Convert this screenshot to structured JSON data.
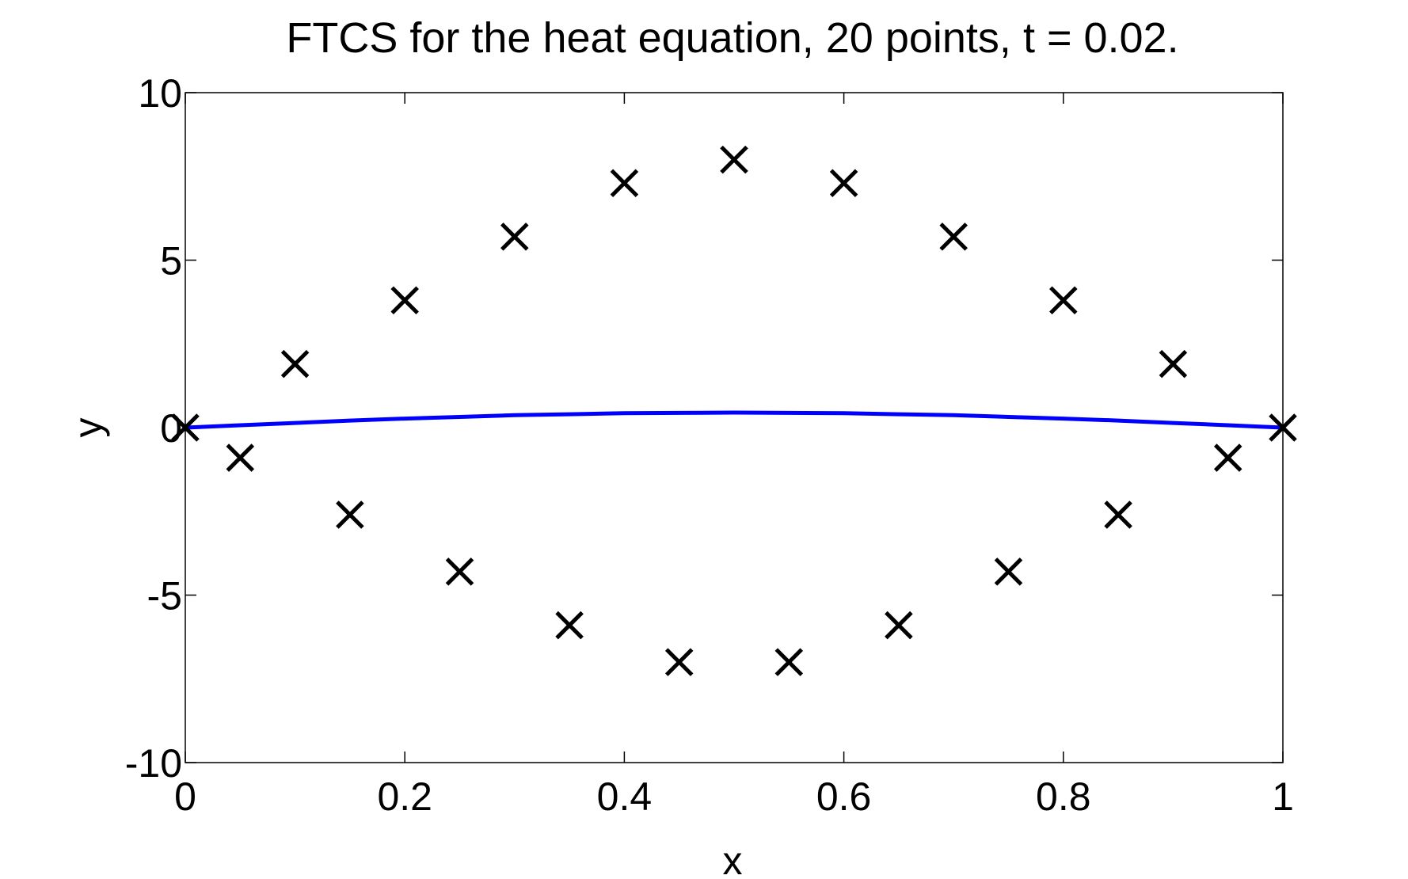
{
  "chart_data": {
    "type": "scatter",
    "title": "FTCS for the heat equation, 20 points, t = 0.02.",
    "xlabel": "x",
    "ylabel": "y",
    "xlim": [
      0,
      1
    ],
    "ylim": [
      -10,
      10
    ],
    "x_ticks": [
      0,
      0.2,
      0.4,
      0.6,
      0.8,
      1
    ],
    "x_tick_labels": [
      "0",
      "0.2",
      "0.4",
      "0.6",
      "0.8",
      "1"
    ],
    "y_ticks": [
      -10,
      -5,
      0,
      5,
      10
    ],
    "y_tick_labels": [
      "-10",
      "-5",
      "0",
      "5",
      "10"
    ],
    "grid": false,
    "series": [
      {
        "kind": "markers",
        "marker": "x",
        "color": "#000000",
        "x": [
          0,
          0.05,
          0.1,
          0.15,
          0.2,
          0.25,
          0.3,
          0.35,
          0.4,
          0.45,
          0.5,
          0.55,
          0.6,
          0.65,
          0.7,
          0.75,
          0.8,
          0.85,
          0.9,
          0.95,
          1
        ],
        "y": [
          0,
          -0.9,
          1.9,
          -2.6,
          3.8,
          -4.3,
          5.7,
          -5.9,
          7.3,
          -7.0,
          8.0,
          -7.0,
          7.3,
          -5.9,
          5.7,
          -4.3,
          3.8,
          -2.6,
          1.9,
          -0.9,
          0
        ]
      },
      {
        "kind": "line",
        "color": "#0000ff",
        "x": [
          0,
          0.05,
          0.1,
          0.15,
          0.2,
          0.25,
          0.3,
          0.35,
          0.4,
          0.45,
          0.5,
          0.55,
          0.6,
          0.65,
          0.7,
          0.75,
          0.8,
          0.85,
          0.9,
          0.95,
          1
        ],
        "y": [
          0,
          0.07,
          0.14,
          0.21,
          0.27,
          0.32,
          0.37,
          0.4,
          0.43,
          0.44,
          0.45,
          0.44,
          0.43,
          0.4,
          0.37,
          0.32,
          0.27,
          0.21,
          0.14,
          0.07,
          0
        ]
      }
    ]
  }
}
